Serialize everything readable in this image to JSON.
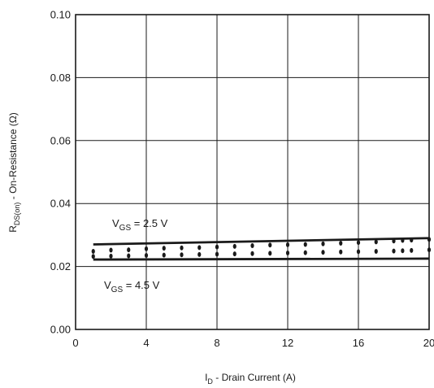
{
  "chart_data": {
    "type": "scatter",
    "title": "",
    "xlabel": {
      "main": "I",
      "sub": "D",
      "rest": " - Drain Current (A)"
    },
    "ylabel": {
      "main": "R",
      "sub": "DS(on)",
      "rest": " - On-Resistance (Ω)"
    },
    "xlim": [
      0,
      20
    ],
    "ylim": [
      0.0,
      0.1
    ],
    "x_ticks": [
      0,
      4,
      8,
      12,
      16,
      20
    ],
    "x_tick_labels": [
      "0",
      "4",
      "8",
      "12",
      "16",
      "20"
    ],
    "y_ticks": [
      0.0,
      0.02,
      0.04,
      0.06,
      0.08,
      0.1
    ],
    "y_tick_labels": [
      "0.00",
      "0.02",
      "0.04",
      "0.06",
      "0.08",
      "0.10"
    ],
    "grid": true,
    "series": [
      {
        "name": "VGS = 2.5 V",
        "label": {
          "main": "V",
          "sub": "GS",
          "rest": " = 2.5 V"
        },
        "line": {
          "x": [
            1,
            20
          ],
          "y": [
            0.027,
            0.029
          ]
        },
        "points": {
          "x": [
            1,
            2,
            3,
            4,
            5,
            6,
            7,
            8,
            9,
            10,
            11,
            12,
            13,
            14,
            15,
            16,
            17,
            18,
            18.5,
            19,
            20
          ],
          "y": [
            0.0248,
            0.0252,
            0.0253,
            0.0256,
            0.0258,
            0.0259,
            0.026,
            0.0262,
            0.0264,
            0.0266,
            0.0268,
            0.0269,
            0.027,
            0.0272,
            0.0274,
            0.0276,
            0.0278,
            0.0281,
            0.0283,
            0.0284,
            0.0286
          ]
        }
      },
      {
        "name": "VGS = 4.5 V",
        "label": {
          "main": "V",
          "sub": "GS",
          "rest": " = 4.5 V"
        },
        "line": {
          "x": [
            1,
            20
          ],
          "y": [
            0.0222,
            0.0225
          ]
        },
        "points": {
          "x": [
            1,
            2,
            3,
            4,
            5,
            6,
            7,
            8,
            9,
            10,
            11,
            12,
            13,
            14,
            15,
            16,
            17,
            18,
            18.5,
            19,
            20
          ],
          "y": [
            0.0232,
            0.0233,
            0.0234,
            0.0235,
            0.0236,
            0.0237,
            0.0238,
            0.0239,
            0.024,
            0.0241,
            0.0242,
            0.0243,
            0.0244,
            0.0245,
            0.0246,
            0.0247,
            0.0248,
            0.0249,
            0.025,
            0.0251,
            0.0253
          ]
        }
      }
    ],
    "colors": {
      "line": "#1a1a1a",
      "grid": "#1a1a1a",
      "background": "#ffffff"
    }
  }
}
